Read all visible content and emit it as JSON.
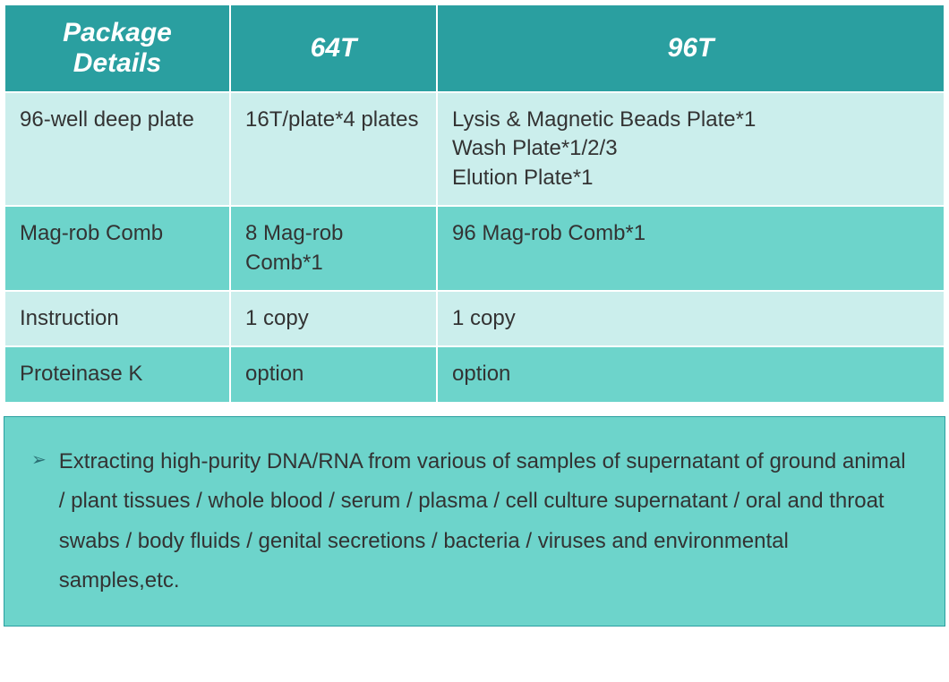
{
  "table": {
    "header_bg": "#2a9fa0",
    "header_color": "#ffffff",
    "header_fontsize": 30,
    "row_odd_bg": "#cbeeec",
    "row_even_bg": "#6dd4cb",
    "border_color": "#ffffff",
    "cell_fontsize": 24,
    "cell_color": "#333333",
    "col_widths_pct": [
      24,
      22,
      54
    ],
    "columns": [
      "Package\nDetails",
      "64T",
      "96T"
    ],
    "rows": [
      [
        "96-well deep plate",
        "16T/plate*4 plates",
        "Lysis & Magnetic Beads Plate*1\nWash Plate*1/2/3\nElution Plate*1"
      ],
      [
        "Mag-rob Comb",
        "8 Mag-rob Comb*1",
        "96 Mag-rob Comb*1"
      ],
      [
        "Instruction",
        "1 copy",
        "1 copy"
      ],
      [
        "Proteinase K",
        "option",
        "option"
      ]
    ]
  },
  "description": {
    "bg": "#6dd4cb",
    "border_color": "#2a9fa0",
    "bullet_color": "#2a6f74",
    "bullet_glyph": "➢",
    "fontsize": 24,
    "text_color": "#333333",
    "line_height": 1.85,
    "text": "Extracting high-purity DNA/RNA from various of samples of supernatant of ground animal / plant tissues / whole blood / serum / plasma / cell culture supernatant / oral and throat swabs / body fluids / genital secretions / bacteria / viruses and environmental samples,etc."
  }
}
